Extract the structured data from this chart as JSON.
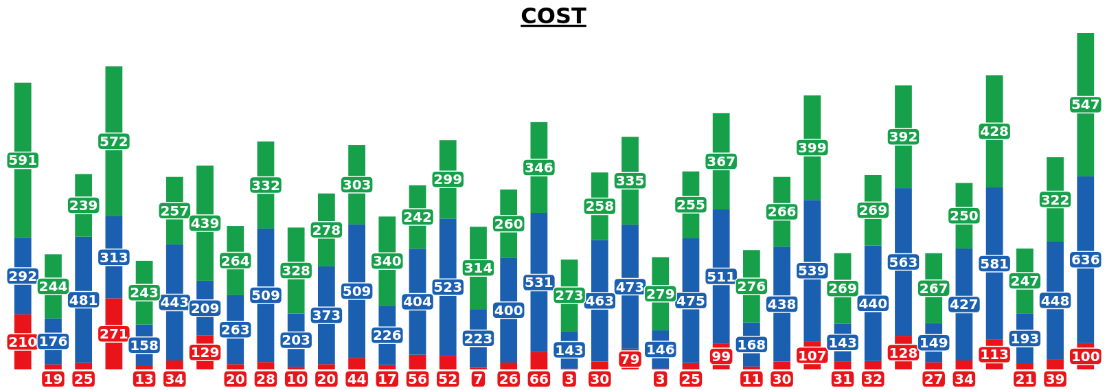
{
  "chart_data": {
    "type": "bar",
    "title": "COST",
    "stacked": true,
    "data_labels": true,
    "categories": [
      null,
      null,
      null,
      null,
      null,
      null,
      null,
      null,
      null,
      null,
      null,
      null,
      null,
      null,
      null,
      null,
      null,
      null,
      null,
      null,
      null,
      null,
      null,
      null,
      null,
      null,
      null,
      null,
      null,
      null,
      null,
      null,
      null,
      null,
      null,
      null
    ],
    "series": [
      {
        "color": "#e8141a",
        "values": [
          210,
          19,
          25,
          271,
          13,
          34,
          129,
          20,
          28,
          10,
          20,
          44,
          17,
          56,
          52,
          7,
          26,
          66,
          3,
          30,
          79,
          3,
          25,
          99,
          11,
          30,
          107,
          31,
          32,
          128,
          27,
          34,
          113,
          21,
          39,
          100
        ]
      },
      {
        "color": "#1a5fb0",
        "values": [
          292,
          176,
          481,
          313,
          158,
          443,
          209,
          263,
          509,
          203,
          373,
          509,
          226,
          404,
          523,
          223,
          400,
          531,
          143,
          463,
          473,
          146,
          475,
          511,
          168,
          438,
          539,
          143,
          440,
          563,
          149,
          427,
          581,
          193,
          448,
          636
        ]
      },
      {
        "color": "#16a04a",
        "values": [
          591,
          244,
          239,
          572,
          243,
          257,
          439,
          264,
          332,
          328,
          278,
          303,
          340,
          242,
          299,
          314,
          260,
          346,
          273,
          258,
          335,
          279,
          255,
          367,
          276,
          266,
          399,
          269,
          269,
          392,
          267,
          250,
          428,
          247,
          322,
          547
        ]
      }
    ]
  }
}
